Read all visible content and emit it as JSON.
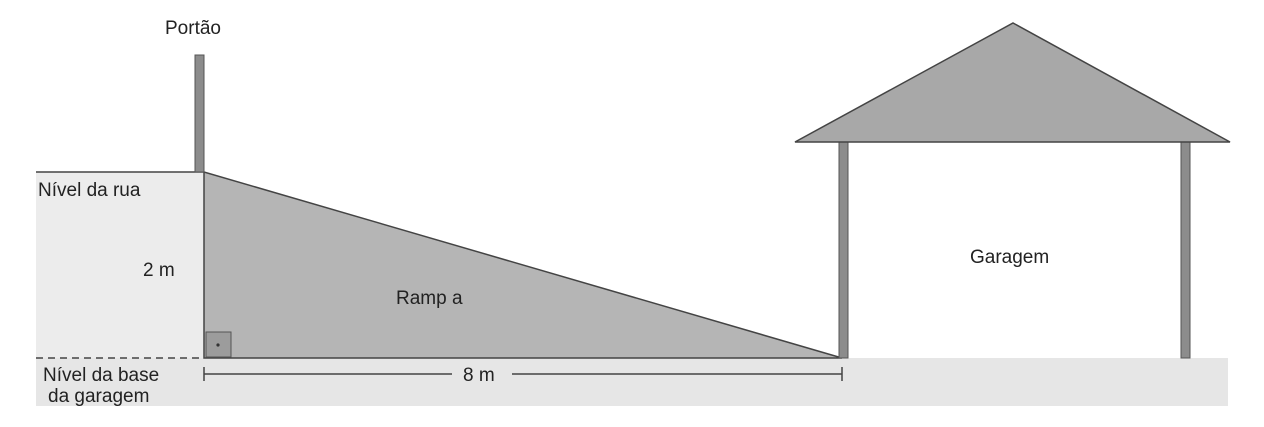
{
  "labels": {
    "gate": "Portão",
    "street_level": "Nível da rua",
    "height": "2 m",
    "ramp": "Ramp a",
    "garage": "Garagem",
    "base_level_line1": "Nível da base",
    "base_level_line2": "da garagem",
    "length": "8 m"
  },
  "colors": {
    "ramp_fill": "#b5b5b5",
    "roof_fill": "#a8a8a8",
    "wall_fill": "#ececec",
    "ground_fill": "#e6e6e6",
    "post_fill": "#8c8c8c",
    "line": "#444444"
  }
}
